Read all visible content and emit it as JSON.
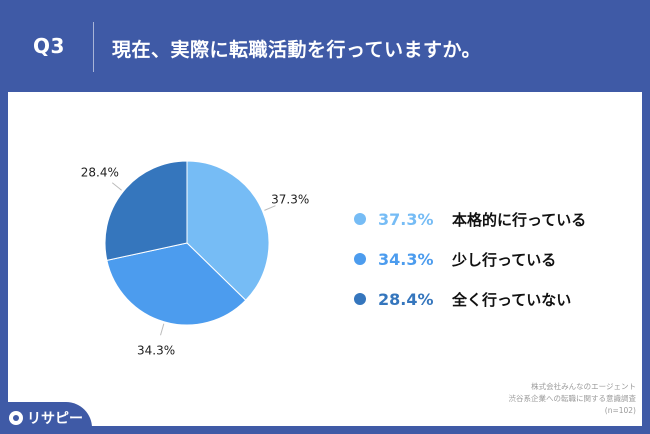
{
  "header": {
    "qnum": "Q3",
    "title": "現在、実際に転職活動を行っていますか。"
  },
  "chart_data": {
    "type": "pie",
    "categories": [
      "本格的に行っている",
      "少し行っている",
      "全く行っていない"
    ],
    "values": [
      37.3,
      34.3,
      28.4
    ],
    "value_labels": [
      "37.3%",
      "34.3%",
      "28.4%"
    ],
    "colors": [
      "#76bcf5",
      "#4c9cee",
      "#3576bd"
    ],
    "legend_position": "right",
    "start_angle": "12 o'clock, clockwise"
  },
  "legend": {
    "items": [
      {
        "pct": "37.3%",
        "label": "本格的に行っている",
        "color": "#76bcf5"
      },
      {
        "pct": "34.3%",
        "label": "少し行っている",
        "color": "#4c9cee"
      },
      {
        "pct": "28.4%",
        "label": "全く行っていない",
        "color": "#3576bd"
      }
    ]
  },
  "source": {
    "line1": "株式会社みんなのエージェント",
    "line2": "渋谷系企業への転職に関する意識調査",
    "line3": "(n=102)"
  },
  "logo": {
    "text": "リサピー",
    "icon": "location-pin-icon"
  },
  "colors": {
    "background": "#3f5aa6",
    "card": "#ffffff"
  }
}
